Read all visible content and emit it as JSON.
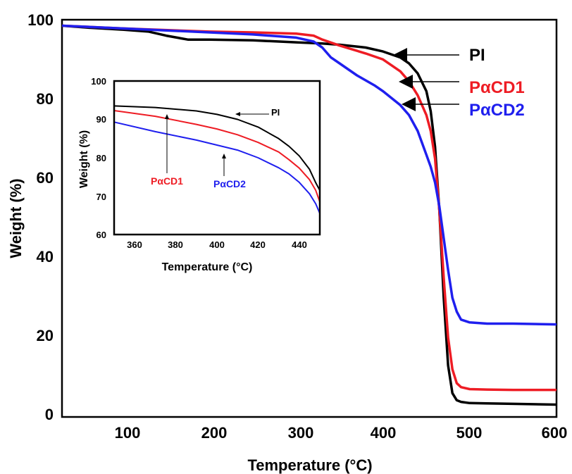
{
  "chart_data": [
    {
      "type": "line",
      "xlabel": "Temperature (°C)",
      "ylabel": "Weight (%)",
      "xlim": [
        30,
        600
      ],
      "ylim": [
        0,
        100
      ],
      "xticks": [
        100,
        200,
        300,
        400,
        500,
        600
      ],
      "yticks": [
        0,
        20,
        40,
        60,
        80,
        100
      ],
      "grid": false,
      "legend": "right, with arrows pointing to curves",
      "series": [
        {
          "name": "PI",
          "color": "#000000",
          "x": [
            30,
            60,
            100,
            130,
            150,
            175,
            200,
            250,
            300,
            330,
            350,
            380,
            400,
            420,
            430,
            440,
            450,
            455,
            460,
            465,
            470,
            475,
            480,
            485,
            490,
            500,
            520,
            550,
            600
          ],
          "y": [
            98.5,
            98,
            97.5,
            97,
            96,
            95,
            95,
            94.8,
            94.3,
            94,
            93.7,
            93,
            92,
            90.5,
            89,
            86.5,
            82,
            77,
            68,
            52,
            30,
            13,
            6,
            4.2,
            3.8,
            3.5,
            3.4,
            3.3,
            3.1
          ]
        },
        {
          "name": "PαCD1",
          "color": "#ee1c24",
          "x": [
            30,
            100,
            200,
            250,
            300,
            320,
            330,
            350,
            380,
            400,
            420,
            430,
            440,
            450,
            455,
            460,
            465,
            470,
            475,
            480,
            485,
            490,
            500,
            520,
            550,
            600
          ],
          "y": [
            98.5,
            97.8,
            97,
            96.8,
            96.5,
            96,
            95,
            93.5,
            91.5,
            90,
            87,
            84.5,
            81,
            76,
            72,
            65,
            52,
            35,
            20,
            12,
            8.5,
            7.5,
            7,
            6.9,
            6.8,
            6.8
          ]
        },
        {
          "name": "PαCD2",
          "color": "#1f1fee",
          "x": [
            30,
            100,
            200,
            250,
            300,
            320,
            330,
            340,
            350,
            370,
            390,
            400,
            420,
            430,
            440,
            450,
            455,
            460,
            465,
            470,
            475,
            480,
            485,
            490,
            500,
            520,
            550,
            600
          ],
          "y": [
            98.5,
            97.8,
            96.8,
            96.3,
            95.5,
            94.5,
            93,
            90.5,
            89,
            86,
            83.5,
            82,
            78.5,
            76,
            72,
            66,
            63,
            59,
            53,
            45,
            37,
            30,
            26.5,
            24.5,
            23.8,
            23.5,
            23.5,
            23.3
          ]
        }
      ]
    },
    {
      "type": "line",
      "xlabel": "Temperature (°C)",
      "ylabel": "Weight (%)",
      "xlim": [
        350,
        450
      ],
      "ylim": [
        60,
        100
      ],
      "xticks": [
        360,
        380,
        400,
        420,
        440
      ],
      "yticks": [
        60,
        70,
        80,
        90,
        100
      ],
      "grid": false,
      "series": [
        {
          "name": "PI",
          "color": "#000000",
          "x": [
            350,
            370,
            390,
            400,
            410,
            420,
            430,
            435,
            440,
            445,
            448,
            450
          ],
          "y": [
            93.5,
            93.1,
            92.2,
            91.3,
            90,
            88,
            85,
            83,
            80.5,
            77,
            73.5,
            71.5
          ]
        },
        {
          "name": "PαCD1",
          "color": "#ee1c24",
          "x": [
            350,
            370,
            390,
            400,
            410,
            420,
            430,
            435,
            440,
            445,
            448,
            450
          ],
          "y": [
            92.3,
            90.8,
            88.7,
            87.5,
            86,
            84,
            81.5,
            79.5,
            77.3,
            74.3,
            71.5,
            68.5
          ]
        },
        {
          "name": "PαCD2",
          "color": "#1f1fee",
          "x": [
            350,
            370,
            390,
            400,
            410,
            420,
            430,
            435,
            440,
            445,
            448,
            450
          ],
          "y": [
            89.3,
            86.8,
            84.6,
            83.3,
            82,
            80,
            77.4,
            75.8,
            73.6,
            70.6,
            68,
            65.5
          ]
        }
      ]
    }
  ],
  "legend_labels": {
    "pi": "PI",
    "pacd1": "PαCD1",
    "pacd2": "PαCD2"
  },
  "inset_labels": {
    "pi": "PI",
    "pacd1": "PαCD1",
    "pacd2": "PαCD2"
  }
}
